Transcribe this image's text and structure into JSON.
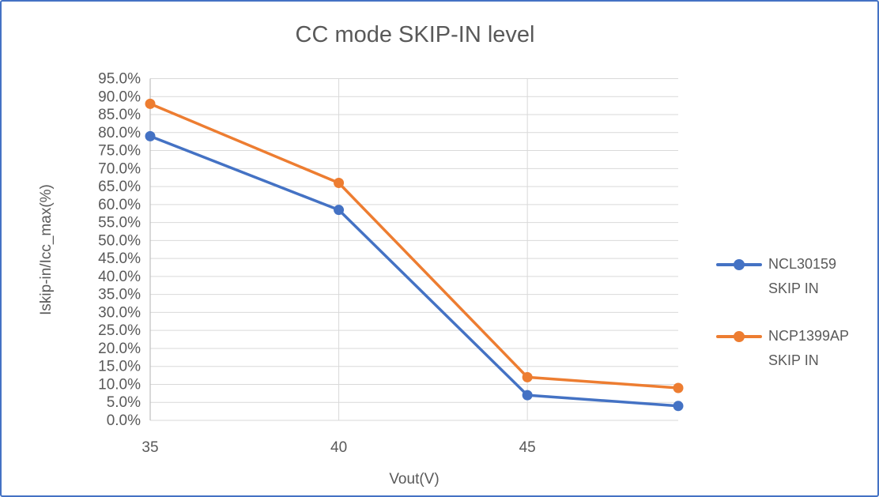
{
  "window": {
    "background_color": "#FFFFFF",
    "border_color": "#4472C4",
    "text_color": "#595959",
    "gridline_color": "#D9D9D9",
    "axis_line_color": "#BFBFBF"
  },
  "chart_data": {
    "type": "line",
    "title": "CC mode SKIP-IN level",
    "xlabel": "Vout(V)",
    "ylabel": "Iskip-in/Icc_max(%)",
    "x": [
      35,
      40,
      45,
      49
    ],
    "x_ticks": [
      35,
      40,
      45
    ],
    "xlim": [
      35,
      49
    ],
    "ylim": [
      0,
      95
    ],
    "y_tick_step": 5,
    "y_tick_decimals": 1,
    "y_tick_suffix": "%",
    "grid": true,
    "marker": "circle",
    "legend_position": "right",
    "series": [
      {
        "name": "NCL30159 SKIP IN",
        "legend_lines": [
          "NCL30159",
          "SKIP IN"
        ],
        "color": "#4472C4",
        "values": [
          79.0,
          58.5,
          7.0,
          4.0
        ]
      },
      {
        "name": "NCP1399AP SKIP IN",
        "legend_lines": [
          "NCP1399AP",
          "SKIP IN"
        ],
        "color": "#ED7D31",
        "values": [
          88.0,
          66.0,
          12.0,
          9.0
        ]
      }
    ]
  }
}
